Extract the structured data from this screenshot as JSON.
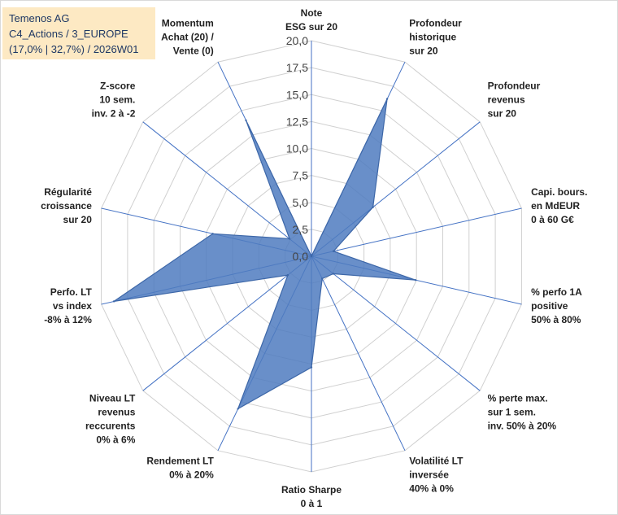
{
  "title_lines": [
    "Temenos AG",
    "C4_Actions / 3_EUROPE",
    "(17,0% | 32,7%) / 2026W01"
  ],
  "chart_data": {
    "type": "radar",
    "r_min": 0,
    "r_max": 20,
    "r_step": 2.5,
    "tick_labels": [
      "0,0",
      "2,5",
      "5,0",
      "7,5",
      "10,0",
      "12,5",
      "15,0",
      "17,5",
      "20,0"
    ],
    "axes": [
      {
        "label": [
          "Note",
          "ESG sur 20"
        ],
        "value": 0
      },
      {
        "label": [
          "Profondeur",
          "historique",
          "sur 20"
        ],
        "value": 16.2
      },
      {
        "label": [
          "Profondeur",
          "revenus",
          "sur 20"
        ],
        "value": 7.3
      },
      {
        "label": [
          "Capi. bours.",
          "en MdEUR",
          "0 à 60 G€"
        ],
        "value": 2.1
      },
      {
        "label": [
          "% perfo 1A",
          "positive",
          "50% à 80%"
        ],
        "value": 9.9
      },
      {
        "label": [
          "% perte max.",
          "sur 1 sem.",
          "inv. 50% à 20%"
        ],
        "value": 2.6
      },
      {
        "label": [
          "Volatilité LT",
          "inversée",
          "40% à 0%"
        ],
        "value": 2.3
      },
      {
        "label": [
          "Ratio Sharpe",
          "0 à 1"
        ],
        "value": 10.3
      },
      {
        "label": [
          "Rendement LT",
          "0% à 20%"
        ],
        "value": 15.7
      },
      {
        "label": [
          "Niveau LT",
          "revenus",
          "reccurents",
          "0% à 6%"
        ],
        "value": 2.8
      },
      {
        "label": [
          "Perfo. LT",
          "vs index",
          "-8% à 12%"
        ],
        "value": 18.8
      },
      {
        "label": [
          "Régularité",
          "croissance",
          "sur 20"
        ],
        "value": 9.4
      },
      {
        "label": [
          "Z-score",
          "10 sem.",
          "inv. 2 à -2"
        ],
        "value": 2.6
      },
      {
        "label": [
          "Momentum",
          "Achat (20) /",
          "Vente (0)"
        ],
        "value": 14.0
      }
    ],
    "colors": {
      "fill": "#4f7bbf",
      "stroke": "#3d67a8",
      "grid": "#d0d0d0",
      "axis": "#4472c4"
    }
  }
}
